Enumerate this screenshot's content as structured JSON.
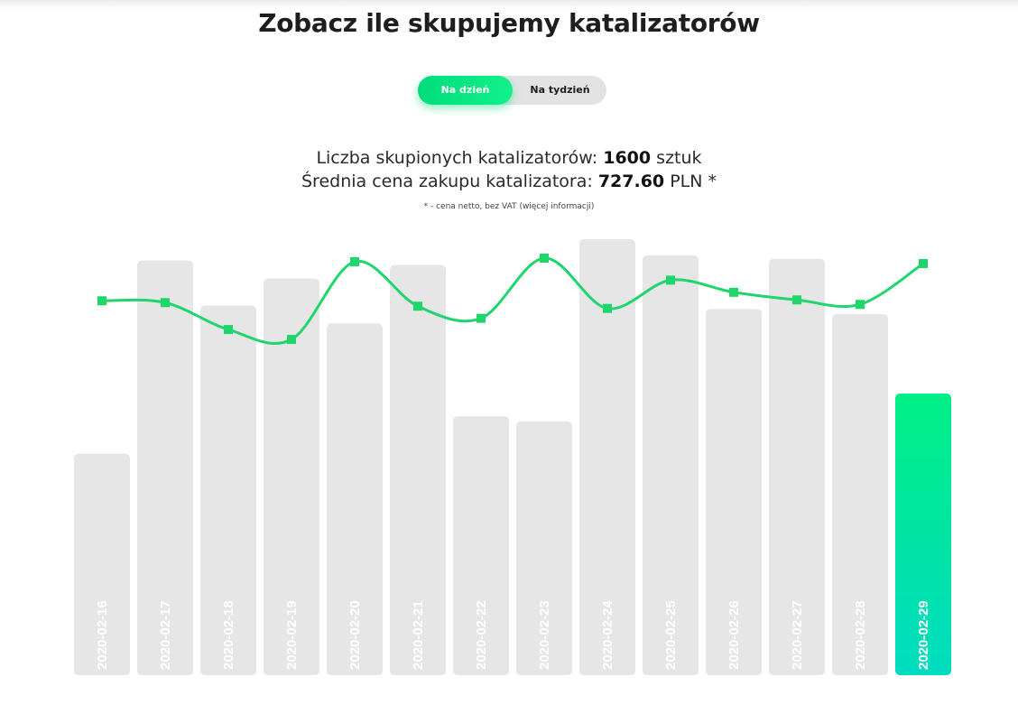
{
  "page": {
    "title": "Zobacz ile skupujemy katalizatorów"
  },
  "toggle": {
    "daily_label": "Na dzień",
    "weekly_label": "Na tydzień",
    "active": "daily"
  },
  "stats": {
    "count_prefix": "Liczba skupionych katalizatorów:",
    "count_value": "1600",
    "count_unit": "sztuk",
    "price_prefix": "Średnia cena zakupu katalizatora:",
    "price_value": "727.60",
    "price_unit": "PLN *"
  },
  "footnote": {
    "text": "* - cena netto, bez VAT",
    "link": "(więcej informacji)"
  },
  "colors": {
    "bar": "#e6e6e6",
    "bar_active_top": "#00ef86",
    "bar_active_bottom": "#00dcc0",
    "line": "#1fd66c"
  },
  "chart_data": {
    "type": "bar",
    "categories": [
      "2020-02-16",
      "2020-02-17",
      "2020-02-18",
      "2020-02-19",
      "2020-02-20",
      "2020-02-21",
      "2020-02-22",
      "2020-02-23",
      "2020-02-24",
      "2020-02-25",
      "2020-02-26",
      "2020-02-27",
      "2020-02-28",
      "2020-02-29"
    ],
    "series": [
      {
        "kind": "bar",
        "values": [
          0.508,
          0.951,
          0.848,
          0.91,
          0.807,
          0.941,
          0.594,
          0.582,
          1.0,
          0.963,
          0.84,
          0.955,
          0.828,
          0.646
        ]
      },
      {
        "kind": "line",
        "values": [
          0.855,
          0.851,
          0.791,
          0.769,
          0.942,
          0.843,
          0.816,
          0.95,
          0.838,
          0.901,
          0.874,
          0.857,
          0.847,
          0.938
        ]
      }
    ],
    "highlighted_category": "2020-02-29",
    "grid": false,
    "legend": "none"
  }
}
